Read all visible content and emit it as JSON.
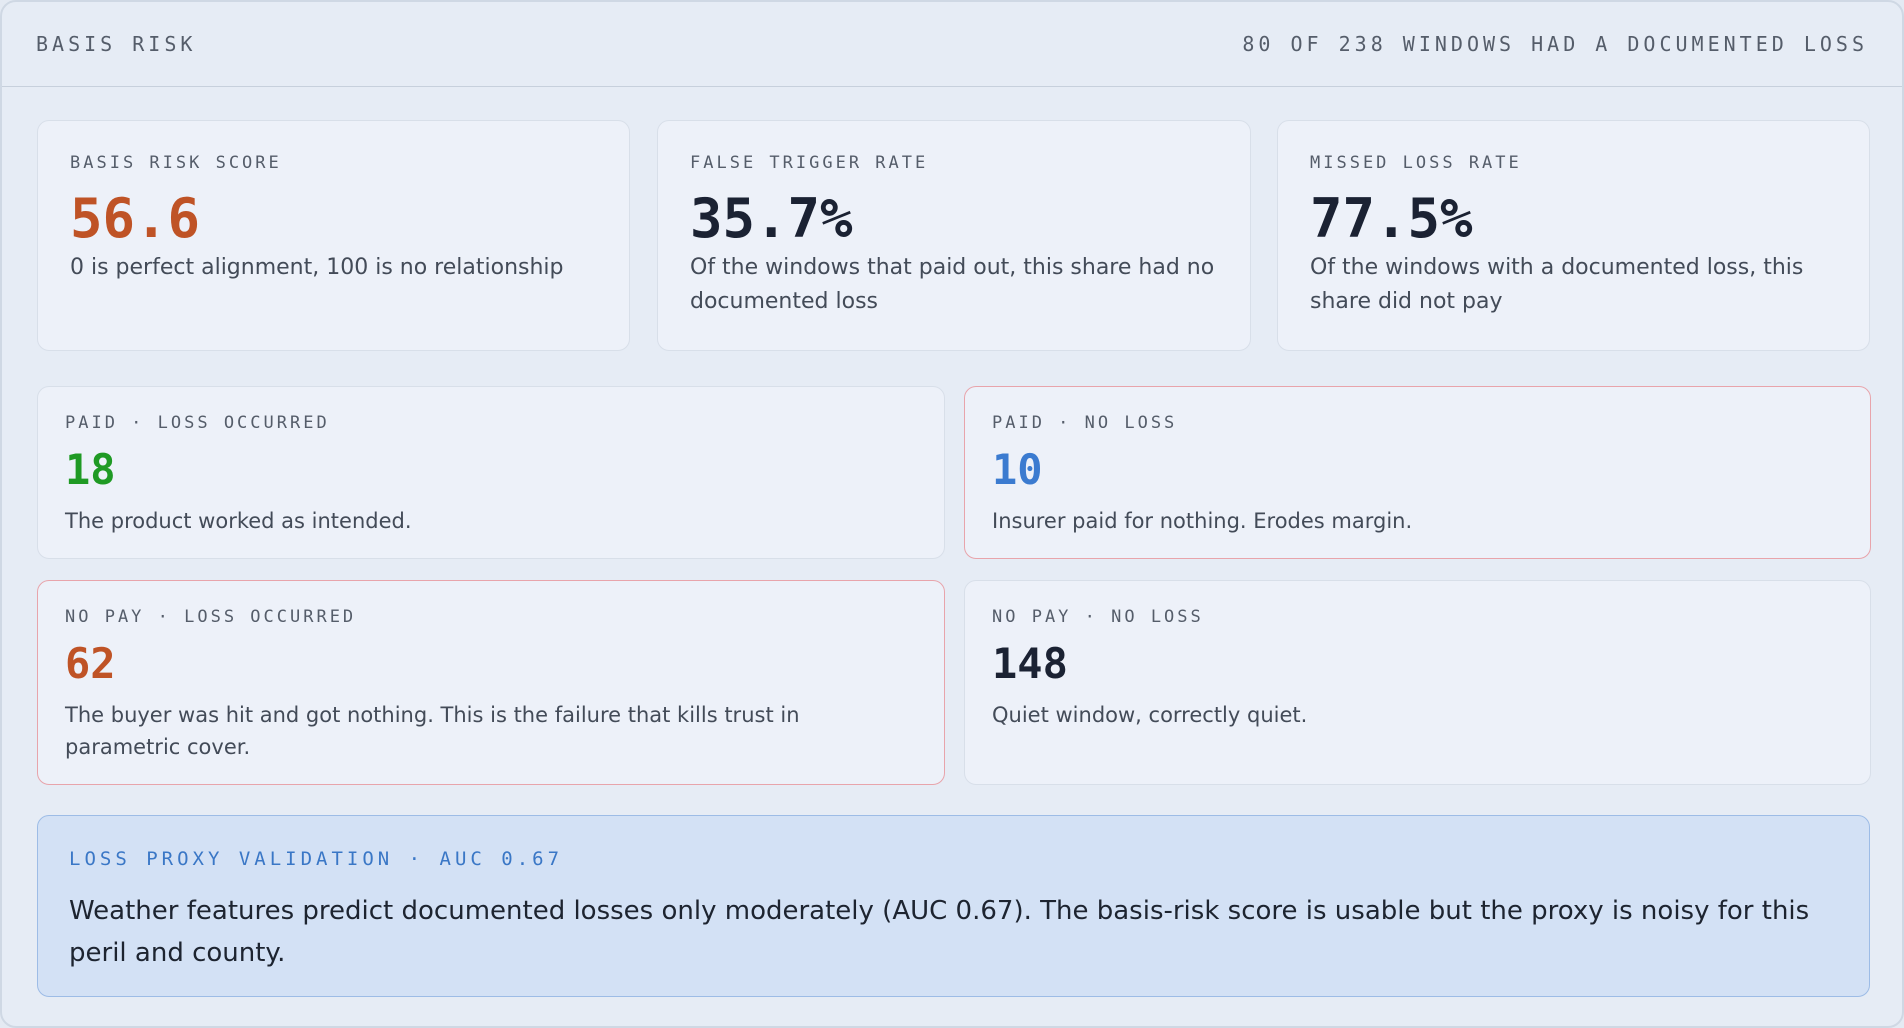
{
  "header": {
    "title": "BASIS RISK",
    "summary": "80 OF 238 WINDOWS HAD A DOCUMENTED LOSS"
  },
  "metrics": [
    {
      "label": "BASIS RISK SCORE",
      "value": 56.6,
      "description": "0 is perfect alignment, 100 is no relationship"
    },
    {
      "label": "FALSE TRIGGER RATE",
      "value": "35.7%",
      "description": "Of the windows that paid out, this share had no documented loss"
    },
    {
      "label": "MISSED LOSS RATE",
      "value": "77.5%",
      "description": "Of the windows with a documented loss, this share did not pay"
    }
  ],
  "outcomes": [
    {
      "label": "PAID · LOSS OCCURRED",
      "value": 18,
      "description": "The product worked as intended."
    },
    {
      "label": "PAID · NO LOSS",
      "value": 10,
      "description": "Insurer paid for nothing. Erodes margin."
    },
    {
      "label": "NO PAY · LOSS OCCURRED",
      "value": 62,
      "description": "The buyer was hit and got nothing. This is the failure that kills trust in parametric cover."
    },
    {
      "label": "NO PAY · NO LOSS",
      "value": 148,
      "description": "Quiet window, correctly quiet."
    }
  ],
  "validation": {
    "title": "LOSS PROXY VALIDATION · AUC 0.67",
    "text": "Weather features predict documented losses only moderately (AUC 0.67). The basis-risk score is usable but the proxy is noisy for this peril and county."
  }
}
